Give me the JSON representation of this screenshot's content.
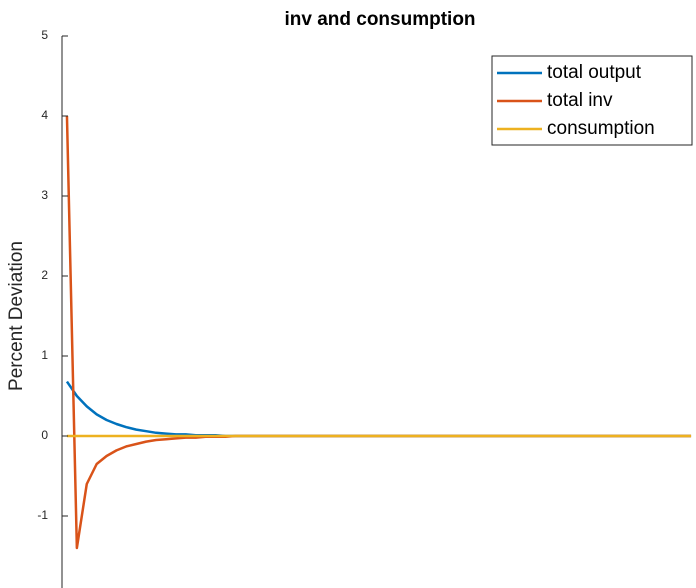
{
  "chart_data": {
    "type": "line",
    "title": "inv and consumption",
    "ylabel": "Percent Deviation",
    "x": [
      1,
      2,
      3,
      4,
      5,
      6,
      7,
      8,
      9,
      10,
      11,
      12,
      13,
      14,
      15,
      16,
      17,
      18,
      19,
      20,
      21,
      22,
      23,
      24,
      25,
      26,
      27,
      28,
      29,
      30,
      31,
      32,
      33,
      34,
      35,
      36,
      37,
      38,
      39,
      40,
      41,
      42,
      43,
      44,
      45,
      46,
      47,
      48,
      49,
      50,
      51,
      52,
      53,
      54,
      55,
      56,
      57,
      58,
      59,
      60,
      61,
      62,
      63,
      64
    ],
    "series": [
      {
        "name": "total output",
        "color": "#0072BD",
        "values": [
          0.68,
          0.5,
          0.37,
          0.27,
          0.2,
          0.15,
          0.11,
          0.08,
          0.06,
          0.04,
          0.03,
          0.02,
          0.02,
          0.01,
          0.01,
          0.01,
          0,
          0,
          0,
          0,
          0,
          0,
          0,
          0,
          0,
          0,
          0,
          0,
          0,
          0,
          0,
          0,
          0,
          0,
          0,
          0,
          0,
          0,
          0,
          0,
          0,
          0,
          0,
          0,
          0,
          0,
          0,
          0,
          0,
          0,
          0,
          0,
          0,
          0,
          0,
          0,
          0,
          0,
          0,
          0,
          0,
          0,
          0,
          0
        ]
      },
      {
        "name": "total inv",
        "color": "#D95319",
        "values": [
          4,
          -1.4,
          -0.6,
          -0.35,
          -0.25,
          -0.18,
          -0.13,
          -0.1,
          -0.07,
          -0.05,
          -0.04,
          -0.03,
          -0.02,
          -0.02,
          -0.01,
          -0.01,
          -0.01,
          0,
          0,
          0,
          0,
          0,
          0,
          0,
          0,
          0,
          0,
          0,
          0,
          0,
          0,
          0,
          0,
          0,
          0,
          0,
          0,
          0,
          0,
          0,
          0,
          0,
          0,
          0,
          0,
          0,
          0,
          0,
          0,
          0,
          0,
          0,
          0,
          0,
          0,
          0,
          0,
          0,
          0,
          0,
          0,
          0,
          0,
          0
        ]
      },
      {
        "name": "consumption",
        "color": "#EDB120",
        "values": [
          0,
          0,
          0,
          0,
          0,
          0,
          0,
          0,
          0,
          0,
          0,
          0,
          0,
          0,
          0,
          0,
          0,
          0,
          0,
          0,
          0,
          0,
          0,
          0,
          0,
          0,
          0,
          0,
          0,
          0,
          0,
          0,
          0,
          0,
          0,
          0,
          0,
          0,
          0,
          0,
          0,
          0,
          0,
          0,
          0,
          0,
          0,
          0,
          0,
          0,
          0,
          0,
          0,
          0,
          0,
          0,
          0,
          0,
          0,
          0,
          0,
          0,
          0,
          0
        ]
      }
    ],
    "xlim": [
      0.5,
      64.5
    ],
    "ylim": [
      -1.9,
      5
    ],
    "yticks": [
      -1,
      0,
      1,
      2,
      3,
      4,
      5
    ],
    "legend": "upper right"
  }
}
